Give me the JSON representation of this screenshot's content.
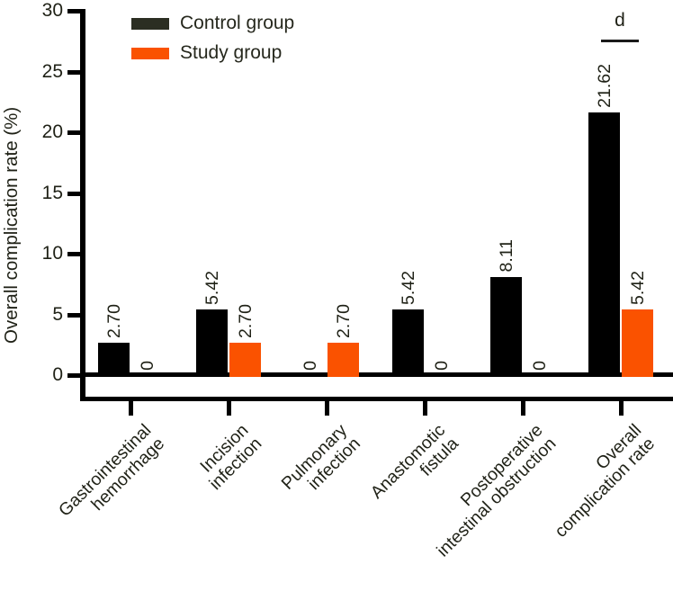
{
  "figure": {
    "background": "#ffffff",
    "text_color": "#1f2116",
    "axis_color": "#000000"
  },
  "legend": {
    "items": [
      {
        "label": "Control group",
        "swatch_color": "#2b2e22"
      },
      {
        "label": "Study group",
        "swatch_color": "#fa5200"
      }
    ]
  },
  "chart_data": {
    "type": "bar",
    "title": "",
    "xlabel": "",
    "ylabel": "Overall complication rate (%)",
    "ylim": [
      0,
      30
    ],
    "yticks": [
      0,
      5,
      10,
      15,
      20,
      25,
      30
    ],
    "grid": false,
    "legend_position": "top-left-inside",
    "categories": [
      "Gastrointestinal hemorrhage",
      "Incision infection",
      "Pulmonary infection",
      "Anastomotic fistula",
      "Postoperative intestinal obstruction",
      "Overall complication rate"
    ],
    "category_lines": [
      [
        "Gastrointestinal",
        "hemorrhage"
      ],
      [
        "Incision",
        "infection"
      ],
      [
        "Pulmonary",
        "infection"
      ],
      [
        "Anastomotic",
        "fistula"
      ],
      [
        "Postoperative",
        "intestinal obstruction"
      ],
      [
        "Overall",
        "complication rate"
      ]
    ],
    "series": [
      {
        "name": "Control group",
        "color": "#000000",
        "values": [
          2.7,
          5.42,
          0,
          5.42,
          8.11,
          21.62
        ],
        "value_labels": [
          "2.70",
          "5.42",
          "0",
          "5.42",
          "8.11",
          "21.62"
        ]
      },
      {
        "name": "Study group",
        "color": "#fa5200",
        "values": [
          0,
          2.7,
          2.7,
          0,
          0,
          5.42
        ],
        "value_labels": [
          "0",
          "2.70",
          "2.70",
          "0",
          "0",
          "5.42"
        ]
      }
    ],
    "significance": {
      "label": "d",
      "category_index": 5
    }
  }
}
